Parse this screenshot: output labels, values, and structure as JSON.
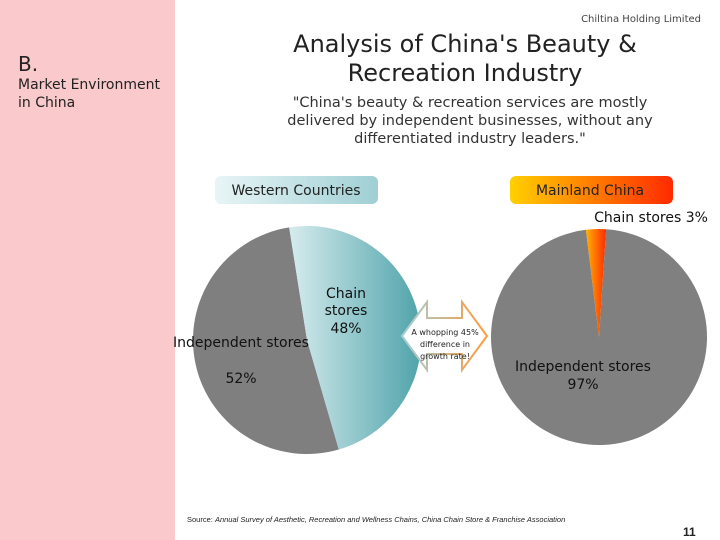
{
  "sidebar": {
    "section_letter": "B.",
    "section_title": "Market Environment in China"
  },
  "header": {
    "company": "Chiltina Holding Limited",
    "title": "Analysis of China's Beauty & Recreation Industry",
    "quote": "\"China's beauty & recreation services are mostly delivered by independent businesses, without any differentiated industry leaders.\""
  },
  "labels": {
    "western": "Western Countries",
    "china": "Mainland China"
  },
  "callout": {
    "line1": "A whopping 45%",
    "line2": "difference in",
    "line3": "growth rate!"
  },
  "chart_data": [
    {
      "type": "pie",
      "title": "Western Countries",
      "slices": [
        {
          "label": "Independent stores",
          "label_line2": "52%",
          "value": 52,
          "color": "#7f7f7f"
        },
        {
          "label": "Chain stores",
          "label_line2": "48%",
          "value": 48,
          "color": "#5fb1b7"
        }
      ]
    },
    {
      "type": "pie",
      "title": "Mainland China",
      "slices": [
        {
          "label": "Chain stores 3%",
          "value": 3,
          "color": "#ff3b00"
        },
        {
          "label": "Independent stores",
          "label_line2": "97%",
          "value": 97,
          "color": "#808080"
        }
      ]
    }
  ],
  "footer": {
    "source_prefix": "Source: ",
    "source_text": "Annual Survey of Aesthetic, Recreation and Wellness Chains, China Chain Store & Franchise Association",
    "page_number": "11"
  },
  "colors": {
    "sidebar": "#f9c9cb",
    "western_bar": "#bfe0e3",
    "china_bar": "#ff5a00",
    "pie_grey": "#7f7f7f"
  }
}
